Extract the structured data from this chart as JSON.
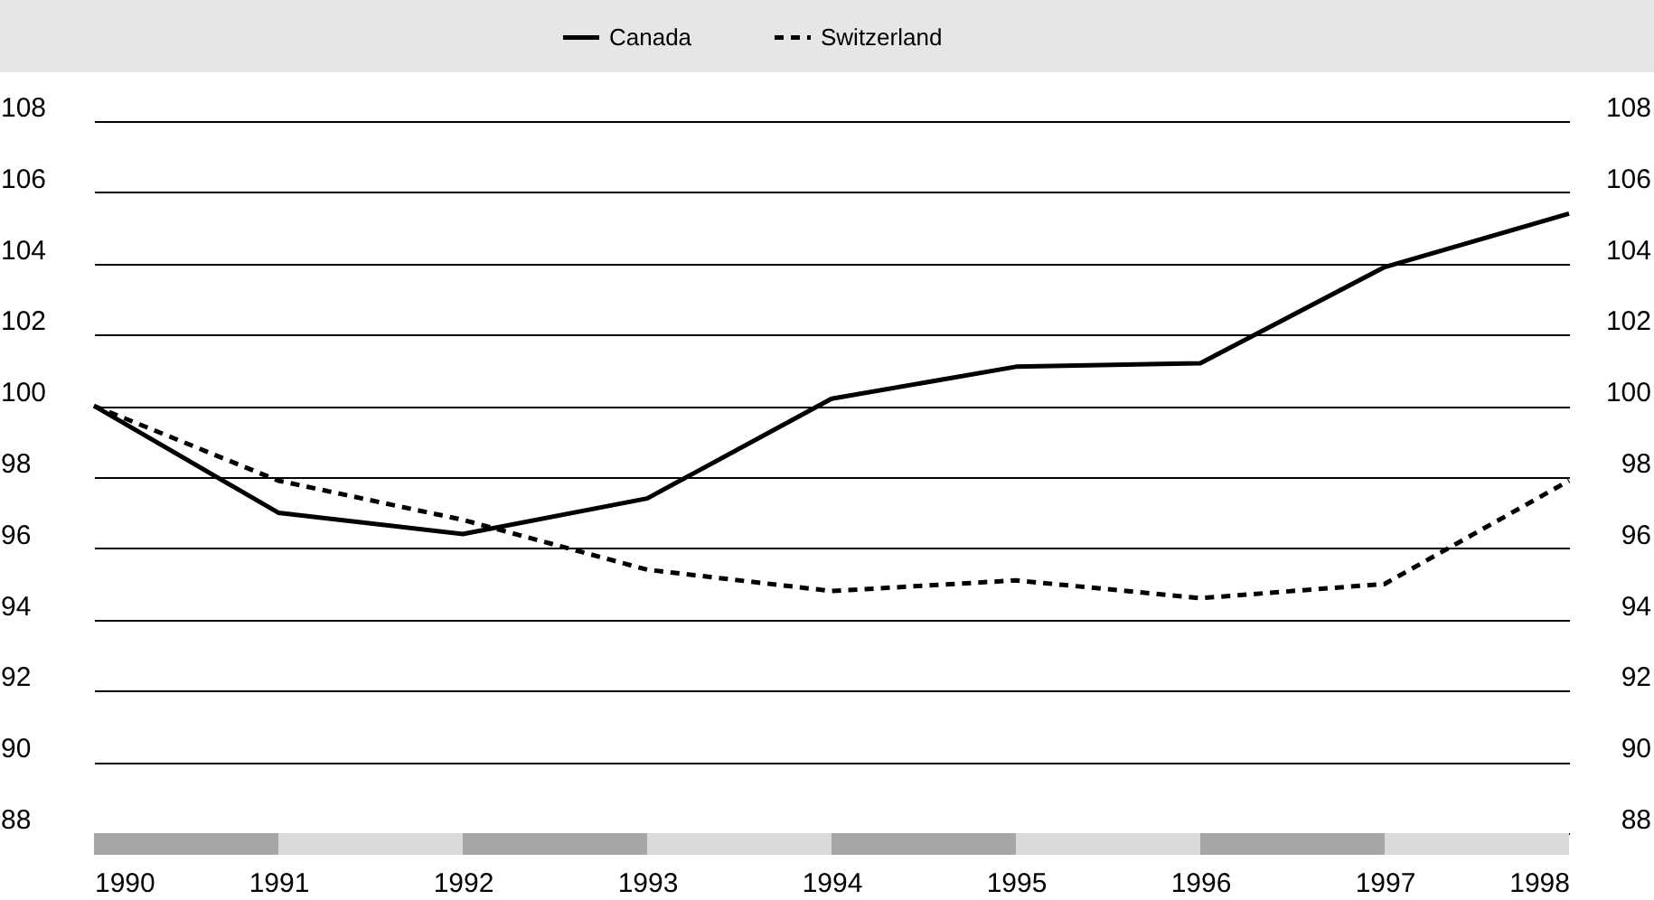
{
  "chart_data": {
    "type": "line",
    "x": [
      1990,
      1991,
      1992,
      1993,
      1994,
      1995,
      1996,
      1997,
      1998
    ],
    "series": [
      {
        "name": "Canada",
        "color": "#000000",
        "line_style": "solid",
        "values": [
          100,
          97.0,
          96.4,
          97.4,
          100.2,
          101.1,
          101.2,
          103.9,
          105.4
        ]
      },
      {
        "name": "Switzerland",
        "color": "#000000",
        "line_style": "dashed",
        "values": [
          100,
          97.9,
          96.8,
          95.4,
          94.8,
          95.1,
          94.6,
          95.0,
          97.9
        ]
      }
    ],
    "xlim": [
      1990,
      1998
    ],
    "xticks": [
      1990,
      1991,
      1992,
      1993,
      1994,
      1995,
      1996,
      1997,
      1998
    ],
    "ylim": [
      88,
      108
    ],
    "yticks": [
      88,
      90,
      92,
      94,
      96,
      98,
      100,
      102,
      104,
      106,
      108
    ],
    "y2lim": [
      88,
      108
    ],
    "y2ticks": [
      88,
      90,
      92,
      94,
      96,
      98,
      100,
      102,
      104,
      106,
      108
    ],
    "grid": "y",
    "legend": "top"
  }
}
